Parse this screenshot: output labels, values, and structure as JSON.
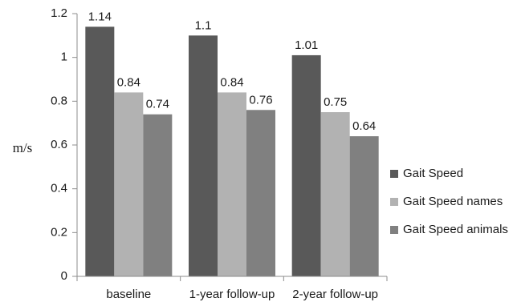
{
  "chart_data": {
    "type": "bar",
    "title": "",
    "xlabel": "",
    "ylabel": "m/s",
    "ylim": [
      0,
      1.2
    ],
    "yticks": [
      "0",
      "0.2",
      "0.4",
      "0.6",
      "0.8",
      "1",
      "1.2"
    ],
    "categories": [
      "baseline",
      "1-year follow-up",
      "2-year follow-up"
    ],
    "series": [
      {
        "name": "Gait Speed",
        "values": [
          1.14,
          1.1,
          1.01
        ],
        "labels": [
          "1.14",
          "1.1",
          "1.01"
        ],
        "color": "#595959"
      },
      {
        "name": "Gait Speed names",
        "values": [
          0.84,
          0.84,
          0.75
        ],
        "labels": [
          "0.84",
          "0.84",
          "0.75"
        ],
        "color": "#b2b2b2"
      },
      {
        "name": "Gait Speed animals",
        "values": [
          0.74,
          0.76,
          0.64
        ],
        "labels": [
          "0.74",
          "0.76",
          "0.64"
        ],
        "color": "#808080"
      }
    ],
    "grid": false,
    "legend_position": "right"
  }
}
